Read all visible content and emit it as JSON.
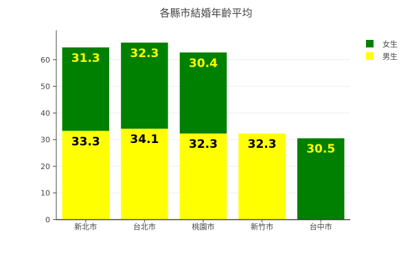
{
  "chart_data": {
    "type": "bar",
    "stacked": true,
    "title": "各縣市結婚年齡平均",
    "categories": [
      "新北市",
      "台北市",
      "桃園市",
      "新竹市",
      "台中市"
    ],
    "series": [
      {
        "name": "男生",
        "color": "#ffff00",
        "label_color": "#000000",
        "values": [
          33.3,
          34.1,
          32.3,
          32.3,
          null
        ],
        "labels": [
          "33.3",
          "34.1",
          "32.3",
          "32.3",
          ""
        ]
      },
      {
        "name": "女生",
        "color": "#008000",
        "label_color": "#ffff00",
        "values": [
          31.3,
          32.3,
          30.4,
          null,
          30.5
        ],
        "labels": [
          "31.3",
          "32.3",
          "30.4",
          "",
          "30.5"
        ]
      }
    ],
    "y_ticks": [
      "0",
      "10",
      "20",
      "30",
      "40",
      "50",
      "60"
    ],
    "ylim": [
      0,
      70
    ],
    "grid": true,
    "legend_position": "top-right",
    "legend": [
      {
        "name": "女生",
        "color": "#008000"
      },
      {
        "name": "男生",
        "color": "#ffff00"
      }
    ]
  }
}
